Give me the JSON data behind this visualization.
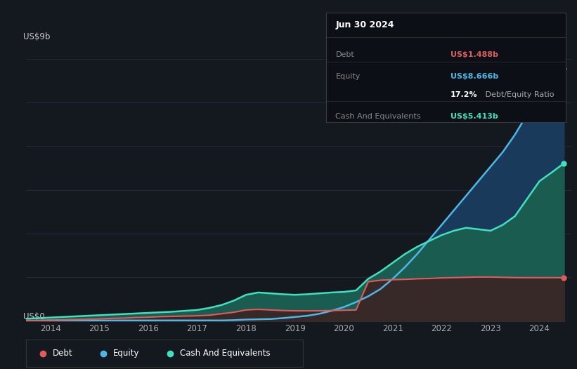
{
  "background_color": "#141920",
  "plot_bg_color": "#141920",
  "grid_color": "#252e3a",
  "ylabel_top": "US$9b",
  "ylabel_bottom": "US$0",
  "years": [
    2013.5,
    2013.75,
    2014.0,
    2014.25,
    2014.5,
    2014.75,
    2015.0,
    2015.25,
    2015.5,
    2015.75,
    2016.0,
    2016.25,
    2016.5,
    2016.75,
    2017.0,
    2017.25,
    2017.5,
    2017.75,
    2018.0,
    2018.25,
    2018.5,
    2018.75,
    2019.0,
    2019.25,
    2019.5,
    2019.75,
    2020.0,
    2020.25,
    2020.5,
    2020.75,
    2021.0,
    2021.25,
    2021.5,
    2021.75,
    2022.0,
    2022.25,
    2022.5,
    2022.75,
    2023.0,
    2023.25,
    2023.5,
    2023.75,
    2024.0,
    2024.25,
    2024.5
  ],
  "debt": [
    0.02,
    0.02,
    0.03,
    0.04,
    0.05,
    0.06,
    0.07,
    0.09,
    0.1,
    0.12,
    0.13,
    0.15,
    0.16,
    0.17,
    0.18,
    0.2,
    0.25,
    0.3,
    0.38,
    0.4,
    0.38,
    0.36,
    0.35,
    0.35,
    0.35,
    0.36,
    0.37,
    0.38,
    1.35,
    1.4,
    1.42,
    1.43,
    1.45,
    1.46,
    1.48,
    1.49,
    1.5,
    1.51,
    1.51,
    1.5,
    1.49,
    1.488,
    1.488,
    1.488,
    1.488
  ],
  "equity": [
    0.01,
    0.01,
    0.02,
    0.02,
    0.02,
    0.02,
    0.02,
    0.02,
    0.02,
    0.02,
    0.02,
    0.02,
    0.02,
    0.02,
    0.02,
    0.02,
    0.02,
    0.03,
    0.05,
    0.06,
    0.07,
    0.1,
    0.14,
    0.18,
    0.25,
    0.35,
    0.48,
    0.65,
    0.85,
    1.1,
    1.45,
    1.85,
    2.3,
    2.8,
    3.3,
    3.8,
    4.3,
    4.8,
    5.3,
    5.8,
    6.4,
    7.1,
    7.8,
    8.2,
    8.666
  ],
  "cash": [
    0.08,
    0.1,
    0.12,
    0.14,
    0.16,
    0.18,
    0.2,
    0.22,
    0.24,
    0.26,
    0.28,
    0.3,
    0.32,
    0.35,
    0.38,
    0.45,
    0.55,
    0.7,
    0.9,
    0.98,
    0.95,
    0.92,
    0.9,
    0.92,
    0.95,
    0.98,
    1.0,
    1.05,
    1.45,
    1.7,
    2.0,
    2.3,
    2.55,
    2.75,
    2.95,
    3.1,
    3.2,
    3.15,
    3.1,
    3.3,
    3.6,
    4.2,
    4.8,
    5.1,
    5.413
  ],
  "debt_color": "#e05c5c",
  "equity_color": "#4db8e8",
  "cash_color": "#40e0c0",
  "equity_fill_color": "#1a3a5c",
  "cash_fill_color": "#1a5c50",
  "debt_fill_color": "#3d2020",
  "xticks": [
    2014,
    2015,
    2016,
    2017,
    2018,
    2019,
    2020,
    2021,
    2022,
    2023,
    2024
  ],
  "xlim": [
    2013.5,
    2024.65
  ],
  "ylim": [
    0,
    9.5
  ],
  "grid_y": [
    1.5,
    3.0,
    4.5,
    6.0,
    7.5,
    9.0
  ],
  "tooltip": {
    "title": "Jun 30 2024",
    "rows": [
      {
        "label": "Debt",
        "value": "US$1.488b",
        "value_color": "#e05c5c"
      },
      {
        "label": "Equity",
        "value": "US$8.666b",
        "value_color": "#4db8e8"
      },
      {
        "label": "",
        "value": "17.2% Debt/Equity Ratio",
        "value_color": null
      },
      {
        "label": "Cash And Equivalents",
        "value": "US$5.413b",
        "value_color": "#40e0c0"
      }
    ]
  },
  "legend_items": [
    "Debt",
    "Equity",
    "Cash And Equivalents"
  ],
  "legend_colors": [
    "#e05c5c",
    "#4db8e8",
    "#40e0c0"
  ]
}
